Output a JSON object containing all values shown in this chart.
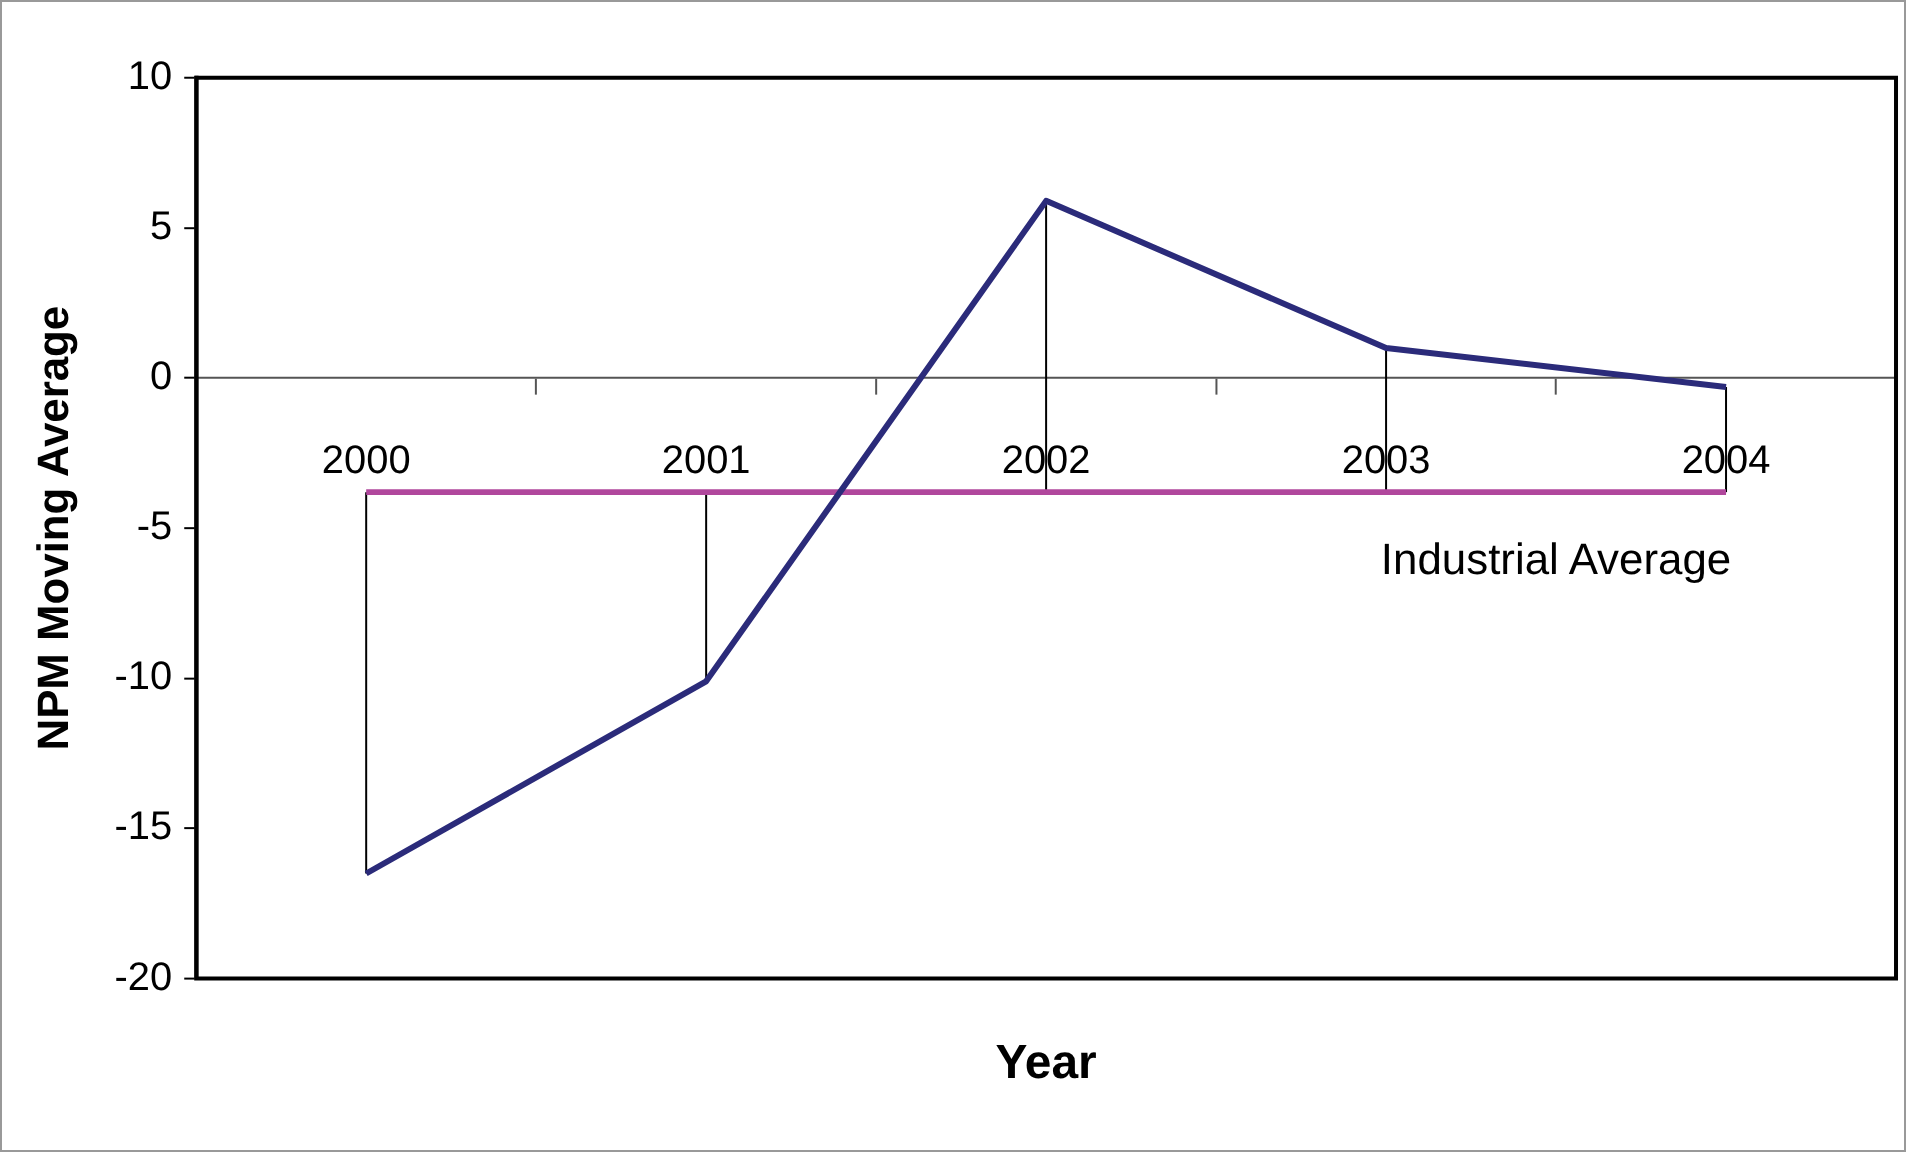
{
  "chart_data": {
    "type": "line",
    "xlabel": "Year",
    "ylabel": "NPM Moving Average",
    "categories": [
      "2000",
      "2001",
      "2002",
      "2003",
      "2004"
    ],
    "series": [
      {
        "color": "#2b2b7a",
        "values": [
          -16.5,
          -10.1,
          5.9,
          1.0,
          -0.3
        ],
        "errors": [
          [
            -16.5,
            -3.8
          ],
          [
            -10.1,
            -3.8
          ],
          [
            -3.8,
            5.9
          ],
          [
            -3.8,
            1.0
          ],
          [
            -3.8,
            -0.3
          ]
        ]
      },
      {
        "name": "Industrial Average",
        "color": "#b0479c",
        "values": [
          -3.8,
          -3.8,
          -3.8,
          -3.8,
          -3.8
        ]
      }
    ],
    "ylim": [
      -20,
      10
    ],
    "yticks": [
      -20,
      -15,
      -10,
      -5,
      0,
      5,
      10
    ],
    "grid": false,
    "legend": false
  }
}
